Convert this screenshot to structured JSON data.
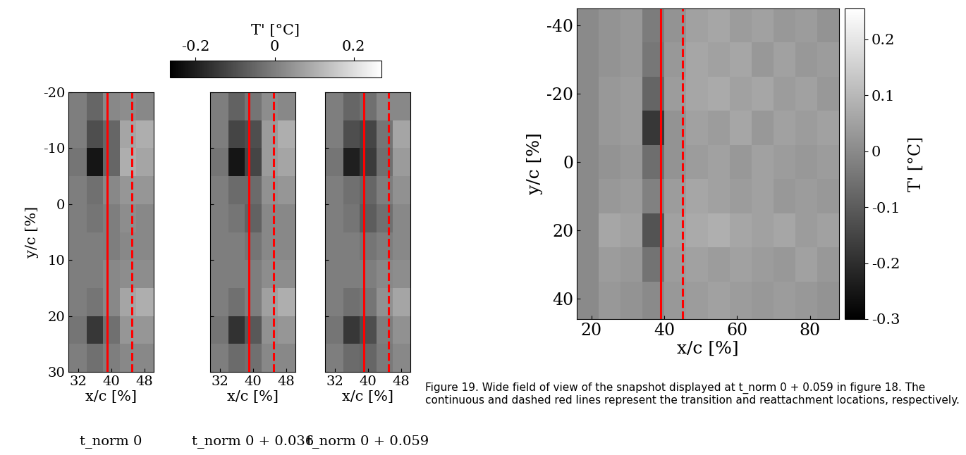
{
  "chart_data": [
    {
      "type": "heatmap",
      "x_label": "x/c [%]",
      "y_label": "y/c [%]",
      "subtitle": "t_norm 0",
      "xlim": [
        29.6,
        50.2
      ],
      "xticks": [
        32,
        40,
        48
      ],
      "ylim": [
        30,
        -20
      ],
      "yticks": [
        -20,
        -10,
        0,
        10,
        20,
        30
      ],
      "x_edges": [
        29.6,
        34,
        38,
        42,
        46,
        50.2
      ],
      "y_edges": [
        -20,
        -15,
        -10,
        -5,
        0,
        5,
        10,
        15,
        20,
        25,
        30
      ],
      "cells": [
        [
          0,
          -0.05,
          0.02,
          0.03,
          0.02
        ],
        [
          0,
          -0.1,
          -0.05,
          0.08,
          0.1
        ],
        [
          -0.02,
          -0.22,
          -0.05,
          0.1,
          0.08
        ],
        [
          0,
          -0.03,
          0.02,
          0.05,
          0.05
        ],
        [
          0,
          -0.02,
          0,
          0.03,
          0.02
        ],
        [
          0,
          0,
          0,
          0.02,
          0.02
        ],
        [
          0,
          0,
          0.02,
          0.03,
          0.03
        ],
        [
          0,
          -0.02,
          0.02,
          0.08,
          0.1
        ],
        [
          -0.02,
          -0.15,
          -0.03,
          0.05,
          0.05
        ],
        [
          0,
          -0.03,
          0,
          0.02,
          0.02
        ]
      ],
      "lines": [
        {
          "x": 39,
          "color": "red",
          "line_style": "solid"
        },
        {
          "x": 45,
          "color": "red",
          "line_style": "dashed"
        }
      ]
    },
    {
      "type": "heatmap",
      "x_label": "x/c [%]",
      "subtitle": "t_norm 0 + 0.036",
      "tick_labels": "x",
      "xlim": [
        29.6,
        50.2
      ],
      "xticks": [
        32,
        40,
        48
      ],
      "ylim": [
        30,
        -20
      ],
      "yticks": [
        -20,
        -10,
        0,
        10,
        20,
        30
      ],
      "x_edges": [
        29.6,
        34,
        38,
        42,
        46,
        50.2
      ],
      "y_edges": [
        -20,
        -15,
        -10,
        -5,
        0,
        5,
        10,
        15,
        20,
        25,
        30
      ],
      "cells": [
        [
          0,
          -0.06,
          -0.02,
          0.03,
          0.02
        ],
        [
          0,
          -0.12,
          -0.1,
          0.06,
          0.1
        ],
        [
          -0.02,
          -0.22,
          -0.12,
          0.06,
          0.08
        ],
        [
          0,
          -0.04,
          -0.04,
          0.04,
          0.05
        ],
        [
          0,
          -0.02,
          -0.06,
          0.02,
          0.02
        ],
        [
          0,
          0,
          -0.02,
          0.02,
          0.02
        ],
        [
          0,
          0,
          0,
          0.03,
          0.03
        ],
        [
          0,
          -0.03,
          0,
          0.07,
          0.1
        ],
        [
          -0.02,
          -0.16,
          -0.08,
          0.04,
          0.05
        ],
        [
          0,
          -0.04,
          -0.03,
          0.02,
          0.02
        ]
      ],
      "lines": [
        {
          "x": 39,
          "color": "red",
          "line_style": "solid"
        },
        {
          "x": 45,
          "color": "red",
          "line_style": "dashed"
        }
      ]
    },
    {
      "type": "heatmap",
      "x_label": "x/c [%]",
      "subtitle": "t_norm 0 + 0.059",
      "tick_labels": "x",
      "xlim": [
        29.6,
        50.2
      ],
      "xticks": [
        32,
        40,
        48
      ],
      "ylim": [
        30,
        -20
      ],
      "yticks": [
        -20,
        -10,
        0,
        10,
        20,
        30
      ],
      "x_edges": [
        29.6,
        34,
        38,
        42,
        46,
        50.2
      ],
      "y_edges": [
        -20,
        -15,
        -10,
        -5,
        0,
        5,
        10,
        15,
        20,
        25,
        30
      ],
      "cells": [
        [
          0,
          -0.05,
          -0.03,
          0.02,
          0.02
        ],
        [
          0,
          -0.1,
          -0.12,
          -0.02,
          0.08
        ],
        [
          -0.02,
          -0.2,
          -0.14,
          -0.03,
          0.06
        ],
        [
          0,
          -0.03,
          -0.05,
          0,
          0.04
        ],
        [
          0,
          -0.02,
          -0.07,
          -0.03,
          0.02
        ],
        [
          0,
          0,
          -0.02,
          0,
          0.02
        ],
        [
          0,
          0,
          0,
          0.02,
          0.03
        ],
        [
          0,
          -0.03,
          -0.02,
          0.04,
          0.08
        ],
        [
          -0.02,
          -0.15,
          -0.1,
          0,
          0.04
        ],
        [
          0,
          -0.04,
          -0.05,
          -0.01,
          0.02
        ]
      ],
      "lines": [
        {
          "x": 39,
          "color": "red",
          "line_style": "solid"
        },
        {
          "x": 45,
          "color": "red",
          "line_style": "dashed"
        }
      ]
    },
    {
      "type": "heatmap",
      "x_label": "x/c [%]",
      "y_label": "y/c [%]",
      "xlim": [
        16,
        88
      ],
      "xticks": [
        20,
        40,
        60,
        80
      ],
      "ylim": [
        46,
        -45
      ],
      "yticks": [
        -40,
        -20,
        0,
        20,
        40
      ],
      "x_edges": [
        16,
        22,
        28,
        34,
        40,
        46,
        52,
        58,
        64,
        70,
        76,
        82,
        88
      ],
      "y_edges": [
        -45,
        -35,
        -25,
        -15,
        -5,
        5,
        15,
        25,
        35,
        46
      ],
      "cells": [
        [
          0,
          0.02,
          0.03,
          -0.03,
          0.02,
          0.05,
          0.06,
          0.04,
          0.05,
          0.03,
          0.04,
          0.02
        ],
        [
          0,
          0.02,
          0.03,
          -0.04,
          0.03,
          0.06,
          0.05,
          0.06,
          0.03,
          0.05,
          0.03,
          0.04
        ],
        [
          0,
          0.03,
          0.04,
          -0.08,
          0.04,
          0.06,
          0.07,
          0.05,
          0.06,
          0.04,
          0.05,
          0.03
        ],
        [
          0,
          0.03,
          0.04,
          -0.18,
          0.02,
          0.05,
          0.04,
          0.06,
          0.03,
          0.05,
          0.04,
          0.05
        ],
        [
          0,
          0.02,
          0.03,
          -0.06,
          0.02,
          0.04,
          0.05,
          0.03,
          0.05,
          0.04,
          0.03,
          0.04
        ],
        [
          0,
          0.03,
          0.04,
          -0.02,
          0.04,
          0.06,
          0.05,
          0.04,
          0.05,
          0.03,
          0.04,
          0.03
        ],
        [
          0,
          0.06,
          0.05,
          -0.12,
          0.05,
          0.07,
          0.08,
          0.06,
          0.05,
          0.06,
          0.04,
          0.05
        ],
        [
          0,
          0.04,
          0.03,
          -0.05,
          0.04,
          0.05,
          0.04,
          0.05,
          0.04,
          0.03,
          0.05,
          0.03
        ],
        [
          0,
          0.03,
          0.02,
          0,
          0.03,
          0.04,
          0.05,
          0.04,
          0.03,
          0.04,
          0.03,
          0.02
        ]
      ],
      "lines": [
        {
          "x": 39,
          "color": "red",
          "line_style": "solid"
        },
        {
          "x": 45,
          "color": "red",
          "line_style": "dashed"
        }
      ],
      "colorbar": {
        "label": "T' [°C]",
        "range": [
          -0.3,
          0.255
        ],
        "ticks": [
          0.2,
          0.1,
          0,
          -0.1,
          -0.2,
          -0.3
        ]
      }
    }
  ],
  "shared_colorbar": {
    "label": "T' [°C]",
    "range": [
      -0.265,
      0.27
    ],
    "ticks": [
      -0.2,
      0,
      0.2
    ],
    "orientation": "horizontal"
  },
  "caption": "Figure 19. Wide field of view of the snapshot displayed at t_norm 0 + 0.059 in figure 18. The continuous and dashed red lines represent the transition and reattachment locations, respectively."
}
